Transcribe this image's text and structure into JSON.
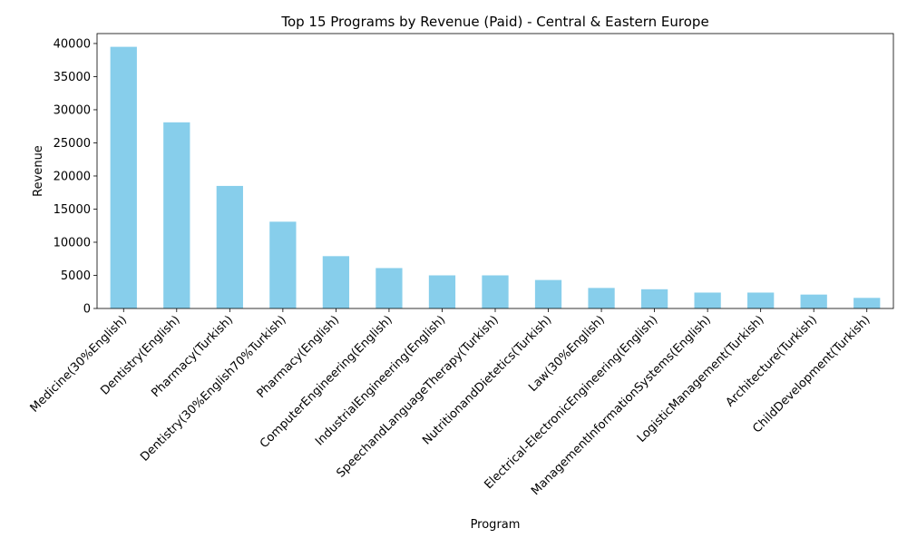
{
  "chart_data": {
    "type": "bar",
    "title": "Top 15 Programs by Revenue (Paid) - Central & Eastern Europe",
    "xlabel": "Program",
    "ylabel": "Revenue",
    "ylim": [
      0,
      41500
    ],
    "yticks": [
      0,
      5000,
      10000,
      15000,
      20000,
      25000,
      30000,
      35000,
      40000
    ],
    "bar_color": "#87ceeb",
    "grid": false,
    "categories": [
      "Medicine(30%English)",
      "Dentistry(English)",
      "Pharmacy(Turkish)",
      "Dentistry(30%English70%Turkish)",
      "Pharmacy(English)",
      "ComputerEngineering(English)",
      "IndustrialEngineering(English)",
      "SpeechandLanguageTherapy(Turkish)",
      "NutritionandDietetics(Turkish)",
      "Law(30%English)",
      "Electrical-ElectronicEngineering(English)",
      "ManagementInformationSystems(English)",
      "LogisticManagement(Turkish)",
      "Architecture(Turkish)",
      "ChildDevelopment(Turkish)"
    ],
    "values": [
      39500,
      28100,
      18500,
      13100,
      7900,
      6100,
      5000,
      5000,
      4300,
      3100,
      2900,
      2400,
      2400,
      2100,
      1600
    ]
  }
}
